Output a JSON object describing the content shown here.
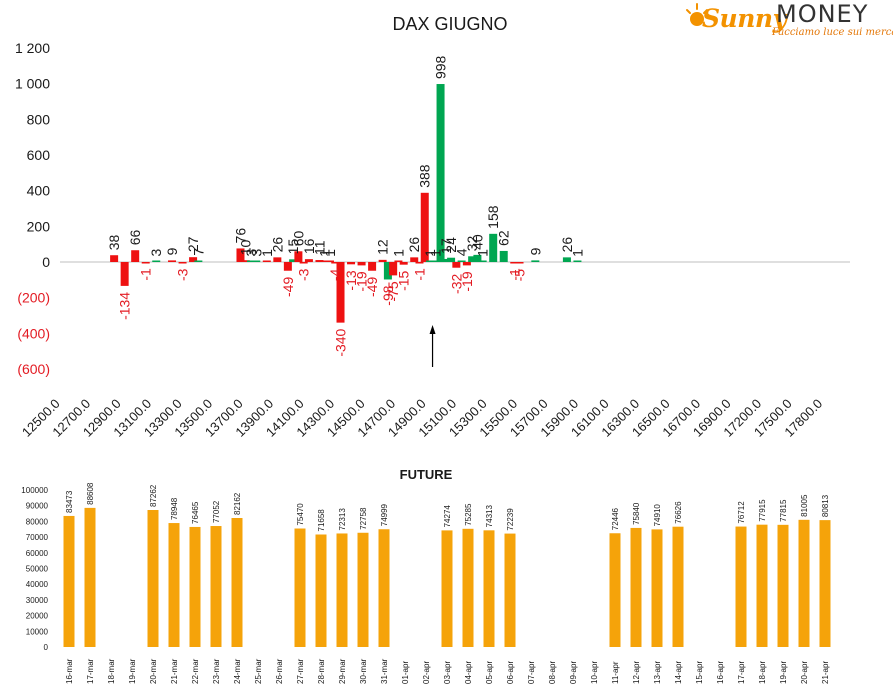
{
  "logo": {
    "word1": "Sunny",
    "word2": "MONEY",
    "tagline": "Facciamo luce sui mercati"
  },
  "colors": {
    "positive": "#00a651",
    "negative": "#ee1111",
    "future": "#f5a30a",
    "axis_text": "#1a1a1a",
    "negative_text": "#e31b23"
  },
  "chart_data": [
    {
      "type": "bar",
      "title": "DAX GIUGNO",
      "yticks": [
        "1 200",
        "1 000",
        "800",
        "600",
        "400",
        "200",
        "0",
        "(200)",
        "(400)",
        "(600)"
      ],
      "ylim": [
        -600,
        1200
      ],
      "xticks": [
        "12500.0",
        "12700.0",
        "12900.0",
        "13100.0",
        "13300.0",
        "13500.0",
        "13700.0",
        "13900.0",
        "14100.0",
        "14300.0",
        "14500.0",
        "14700.0",
        "14900.0",
        "15100.0",
        "15300.0",
        "15500.0",
        "15700.0",
        "15900.0",
        "16100.0",
        "16300.0",
        "16500.0",
        "16700.0",
        "16900.0",
        "17200.0",
        "17500.0",
        "17800.0"
      ],
      "series": [
        {
          "values": [
            [
              12900,
              38,
              "38"
            ],
            [
              13000,
              -134,
              "-134"
            ],
            [
              13100,
              66,
              "66"
            ],
            [
              13200,
              -1,
              "-1"
            ],
            [
              13300,
              3,
              "3"
            ],
            [
              13450,
              9,
              "9"
            ],
            [
              13550,
              -3,
              "-3"
            ],
            [
              13650,
              27,
              "27"
            ],
            [
              13700,
              7,
              "7"
            ],
            [
              14100,
              76,
              "76"
            ],
            [
              14150,
              10,
              "10"
            ],
            [
              14200,
              3,
              "3"
            ],
            [
              14250,
              3,
              "3"
            ],
            [
              14350,
              1,
              "1"
            ],
            [
              14450,
              26,
              "26"
            ],
            [
              14550,
              -49,
              "-49"
            ],
            [
              14600,
              15,
              "15"
            ],
            [
              14650,
              60,
              "60"
            ],
            [
              14700,
              -3,
              "-3"
            ],
            [
              14750,
              16,
              "16"
            ],
            [
              14850,
              11,
              "11"
            ],
            [
              14900,
              1,
              "1"
            ],
            [
              14950,
              1,
              "1"
            ],
            [
              15000,
              -4,
              "-4"
            ],
            [
              15050,
              -340,
              "-340"
            ],
            [
              15150,
              -13,
              "-13"
            ],
            [
              15250,
              -19,
              "-19"
            ],
            [
              15350,
              -49,
              "-49"
            ],
            [
              15450,
              12,
              "12"
            ],
            [
              15500,
              -98,
              "-98"
            ],
            [
              15550,
              -75,
              "-75"
            ],
            [
              15600,
              1,
              "1"
            ],
            [
              15650,
              -15,
              "-15"
            ],
            [
              15750,
              26,
              "26"
            ],
            [
              15800,
              -1,
              "-1"
            ],
            [
              15850,
              388,
              "388"
            ],
            [
              15900,
              1,
              "1"
            ],
            [
              15950,
              1,
              "1"
            ],
            [
              16000,
              998,
              "998"
            ],
            [
              16050,
              17,
              "17"
            ],
            [
              16100,
              24,
              "24"
            ],
            [
              16150,
              -32,
              "-32"
            ],
            [
              16200,
              4,
              "4"
            ],
            [
              16250,
              -19,
              "-19"
            ],
            [
              16300,
              32,
              "32"
            ],
            [
              16350,
              40,
              "40"
            ],
            [
              16400,
              1,
              "1"
            ],
            [
              16500,
              158,
              "158"
            ],
            [
              16600,
              62,
              "62"
            ],
            [
              16700,
              -1,
              "-1"
            ],
            [
              16750,
              -5,
              "-5"
            ],
            [
              16900,
              9,
              "9"
            ],
            [
              17200,
              26,
              "26"
            ],
            [
              17300,
              1,
              "1"
            ]
          ]
        }
      ],
      "annotations": [
        "arrow-at-16000"
      ]
    },
    {
      "type": "bar",
      "title": "FUTURE",
      "yticks": [
        "100000",
        "90000",
        "80000",
        "70000",
        "60000",
        "50000",
        "40000",
        "30000",
        "20000",
        "10000",
        "0"
      ],
      "ylim": [
        0,
        100000
      ],
      "categories": [
        "16-mar",
        "17-mar",
        "18-mar",
        "19-mar",
        "20-mar",
        "21-mar",
        "22-mar",
        "23-mar",
        "24-mar",
        "25-mar",
        "26-mar",
        "27-mar",
        "28-mar",
        "29-mar",
        "30-mar",
        "31-mar",
        "01-apr",
        "02-apr",
        "03-apr",
        "04-apr",
        "05-apr",
        "06-apr",
        "07-apr",
        "08-apr",
        "09-apr",
        "10-apr",
        "11-apr",
        "12-apr",
        "13-apr",
        "14-apr",
        "15-apr",
        "16-apr",
        "17-apr",
        "18-apr",
        "19-apr",
        "20-apr",
        "21-apr"
      ],
      "values": [
        83473,
        88608,
        null,
        null,
        87262,
        78948,
        76465,
        77052,
        82162,
        null,
        null,
        75470,
        71658,
        72313,
        72758,
        74999,
        null,
        null,
        74274,
        75285,
        74313,
        72239,
        null,
        null,
        null,
        null,
        72446,
        75840,
        74910,
        76626,
        null,
        null,
        76712,
        77915,
        77815,
        81005,
        80813
      ],
      "labels": [
        "83473",
        "88608",
        "",
        "",
        "87262",
        "78948",
        "76465",
        "77052",
        "82162",
        "",
        "",
        "75470",
        "71658",
        "72313",
        "72758",
        "74999",
        "",
        "",
        "74274",
        "75285",
        "74313",
        "72239",
        "",
        "",
        "",
        "",
        "72446",
        "75840",
        "74910",
        "76626",
        "",
        "",
        "76712",
        "77915",
        "77815",
        "81005",
        "80813"
      ]
    }
  ]
}
